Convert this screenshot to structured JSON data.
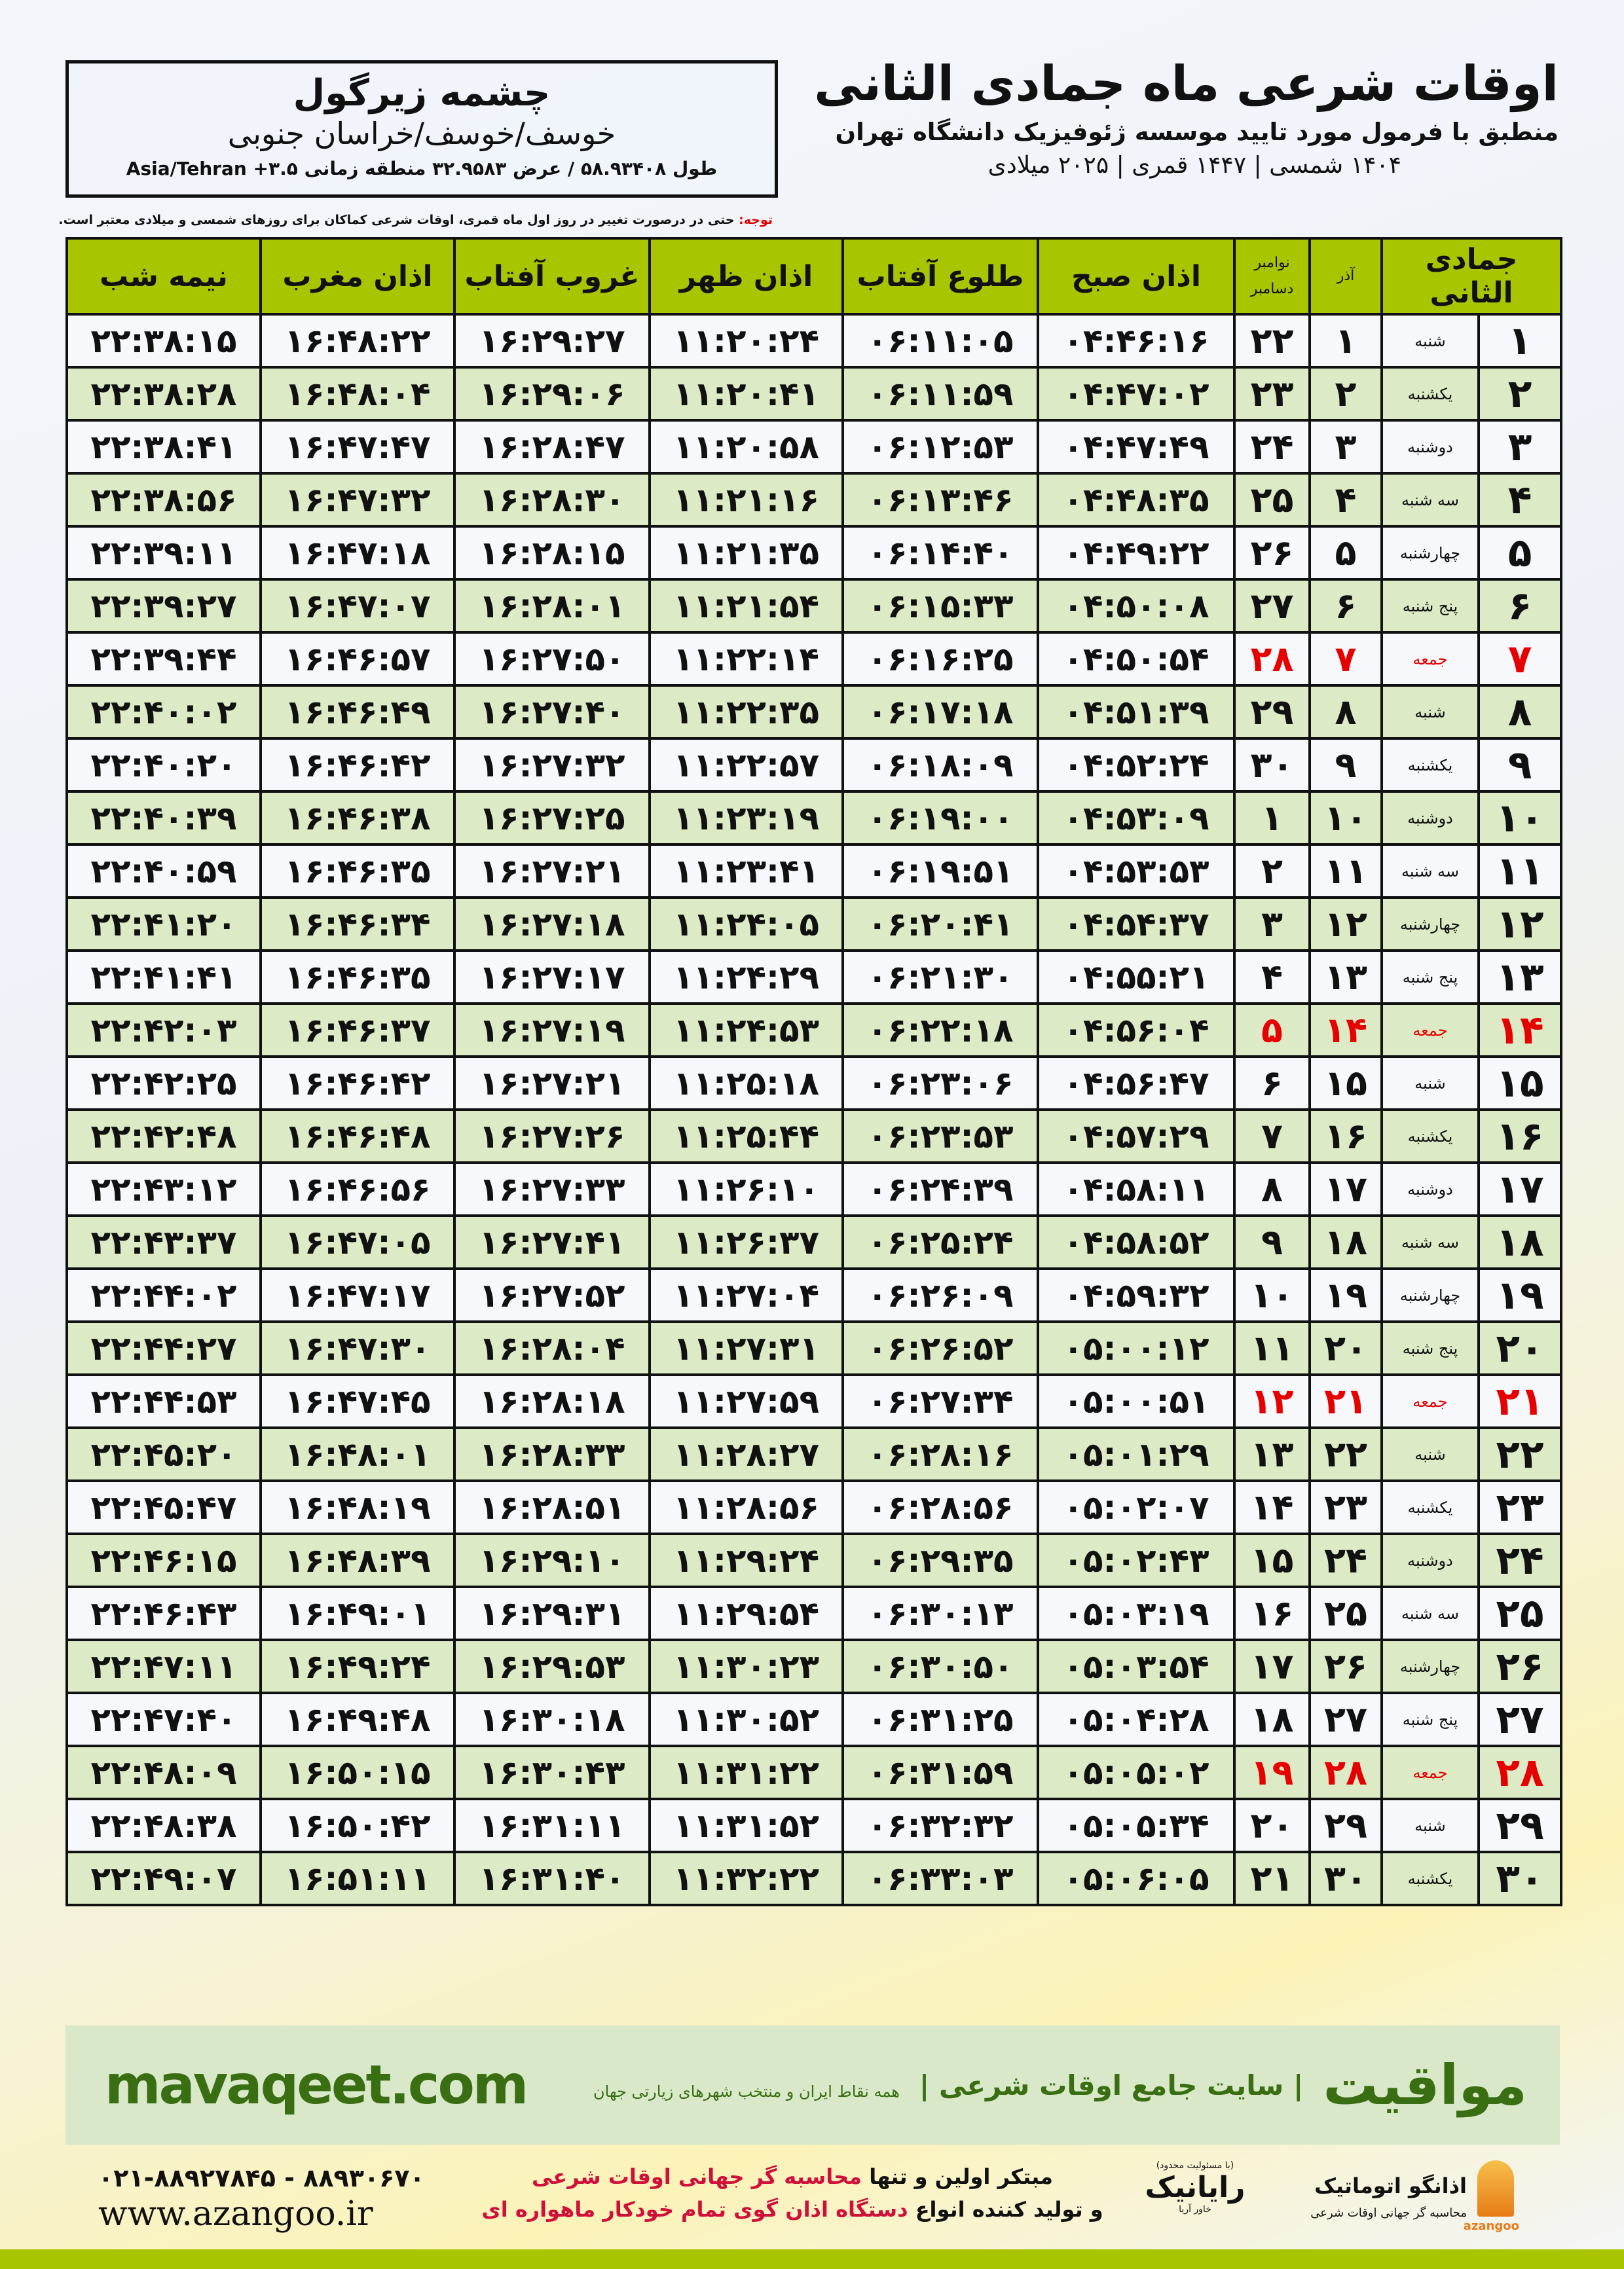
{
  "header": {
    "title": "اوقات شرعی ماه جمادی الثانی",
    "subtitle": "منطبق با فرمول مورد تایید موسسه ژئوفیزیک دانشگاه تهران",
    "years": "۱۴۰۴ شمسی | ۱۴۴۷ قمری | ۲۰۲۵ میلادی"
  },
  "location": {
    "city": "چشمه زیرگول",
    "province": "خوسف/خوسف/خراسان جنوبی",
    "coords": "طول ۵۸.۹۳۴۰۸ / عرض ۳۲.۹۵۸۳ منطقه زمانی ۳.۵+ Asia/Tehran"
  },
  "note": {
    "label": "توجه:",
    "text": " حتی در درصورت تغییر در روز اول ماه قمری، اوقات شرعی کماکان برای روزهای شمسی و میلادی معتبر است."
  },
  "table": {
    "columns": {
      "hijri": "جمادی الثانی",
      "azar": "آذر",
      "greg_1": "نوامبر",
      "greg_2": "دسامبر",
      "fajr": "اذان صبح",
      "sunrise": "طلوع آفتاب",
      "dhuhr": "اذان ظهر",
      "sunset": "غروب آفتاب",
      "maghrib": "اذان مغرب",
      "midnight": "نیمه شب"
    },
    "highlight_color": "#e60000",
    "rows": [
      [
        "۱",
        "شنبه",
        "۱",
        "۲۲",
        "۰۴:۴۶:۱۶",
        "۰۶:۱۱:۰۵",
        "۱۱:۲۰:۲۴",
        "۱۶:۲۹:۲۷",
        "۱۶:۴۸:۲۲",
        "۲۲:۳۸:۱۵"
      ],
      [
        "۲",
        "یکشنبه",
        "۲",
        "۲۳",
        "۰۴:۴۷:۰۲",
        "۰۶:۱۱:۵۹",
        "۱۱:۲۰:۴۱",
        "۱۶:۲۹:۰۶",
        "۱۶:۴۸:۰۴",
        "۲۲:۳۸:۲۸"
      ],
      [
        "۳",
        "دوشنبه",
        "۳",
        "۲۴",
        "۰۴:۴۷:۴۹",
        "۰۶:۱۲:۵۳",
        "۱۱:۲۰:۵۸",
        "۱۶:۲۸:۴۷",
        "۱۶:۴۷:۴۷",
        "۲۲:۳۸:۴۱"
      ],
      [
        "۴",
        "سه شنبه",
        "۴",
        "۲۵",
        "۰۴:۴۸:۳۵",
        "۰۶:۱۳:۴۶",
        "۱۱:۲۱:۱۶",
        "۱۶:۲۸:۳۰",
        "۱۶:۴۷:۳۲",
        "۲۲:۳۸:۵۶"
      ],
      [
        "۵",
        "چهارشنبه",
        "۵",
        "۲۶",
        "۰۴:۴۹:۲۲",
        "۰۶:۱۴:۴۰",
        "۱۱:۲۱:۳۵",
        "۱۶:۲۸:۱۵",
        "۱۶:۴۷:۱۸",
        "۲۲:۳۹:۱۱"
      ],
      [
        "۶",
        "پنج شنبه",
        "۶",
        "۲۷",
        "۰۴:۵۰:۰۸",
        "۰۶:۱۵:۳۳",
        "۱۱:۲۱:۵۴",
        "۱۶:۲۸:۰۱",
        "۱۶:۴۷:۰۷",
        "۲۲:۳۹:۲۷"
      ],
      [
        "۷",
        "جمعه",
        "۷",
        "۲۸",
        "۰۴:۵۰:۵۴",
        "۰۶:۱۶:۲۵",
        "۱۱:۲۲:۱۴",
        "۱۶:۲۷:۵۰",
        "۱۶:۴۶:۵۷",
        "۲۲:۳۹:۴۴"
      ],
      [
        "۸",
        "شنبه",
        "۸",
        "۲۹",
        "۰۴:۵۱:۳۹",
        "۰۶:۱۷:۱۸",
        "۱۱:۲۲:۳۵",
        "۱۶:۲۷:۴۰",
        "۱۶:۴۶:۴۹",
        "۲۲:۴۰:۰۲"
      ],
      [
        "۹",
        "یکشنبه",
        "۹",
        "۳۰",
        "۰۴:۵۲:۲۴",
        "۰۶:۱۸:۰۹",
        "۱۱:۲۲:۵۷",
        "۱۶:۲۷:۳۲",
        "۱۶:۴۶:۴۲",
        "۲۲:۴۰:۲۰"
      ],
      [
        "۱۰",
        "دوشنبه",
        "۱۰",
        "۱",
        "۰۴:۵۳:۰۹",
        "۰۶:۱۹:۰۰",
        "۱۱:۲۳:۱۹",
        "۱۶:۲۷:۲۵",
        "۱۶:۴۶:۳۸",
        "۲۲:۴۰:۳۹"
      ],
      [
        "۱۱",
        "سه شنبه",
        "۱۱",
        "۲",
        "۰۴:۵۳:۵۳",
        "۰۶:۱۹:۵۱",
        "۱۱:۲۳:۴۱",
        "۱۶:۲۷:۲۱",
        "۱۶:۴۶:۳۵",
        "۲۲:۴۰:۵۹"
      ],
      [
        "۱۲",
        "چهارشنبه",
        "۱۲",
        "۳",
        "۰۴:۵۴:۳۷",
        "۰۶:۲۰:۴۱",
        "۱۱:۲۴:۰۵",
        "۱۶:۲۷:۱۸",
        "۱۶:۴۶:۳۴",
        "۲۲:۴۱:۲۰"
      ],
      [
        "۱۳",
        "پنج شنبه",
        "۱۳",
        "۴",
        "۰۴:۵۵:۲۱",
        "۰۶:۲۱:۳۰",
        "۱۱:۲۴:۲۹",
        "۱۶:۲۷:۱۷",
        "۱۶:۴۶:۳۵",
        "۲۲:۴۱:۴۱"
      ],
      [
        "۱۴",
        "جمعه",
        "۱۴",
        "۵",
        "۰۴:۵۶:۰۴",
        "۰۶:۲۲:۱۸",
        "۱۱:۲۴:۵۳",
        "۱۶:۲۷:۱۹",
        "۱۶:۴۶:۳۷",
        "۲۲:۴۲:۰۳"
      ],
      [
        "۱۵",
        "شنبه",
        "۱۵",
        "۶",
        "۰۴:۵۶:۴۷",
        "۰۶:۲۳:۰۶",
        "۱۱:۲۵:۱۸",
        "۱۶:۲۷:۲۱",
        "۱۶:۴۶:۴۲",
        "۲۲:۴۲:۲۵"
      ],
      [
        "۱۶",
        "یکشنبه",
        "۱۶",
        "۷",
        "۰۴:۵۷:۲۹",
        "۰۶:۲۳:۵۳",
        "۱۱:۲۵:۴۴",
        "۱۶:۲۷:۲۶",
        "۱۶:۴۶:۴۸",
        "۲۲:۴۲:۴۸"
      ],
      [
        "۱۷",
        "دوشنبه",
        "۱۷",
        "۸",
        "۰۴:۵۸:۱۱",
        "۰۶:۲۴:۳۹",
        "۱۱:۲۶:۱۰",
        "۱۶:۲۷:۳۳",
        "۱۶:۴۶:۵۶",
        "۲۲:۴۳:۱۲"
      ],
      [
        "۱۸",
        "سه شنبه",
        "۱۸",
        "۹",
        "۰۴:۵۸:۵۲",
        "۰۶:۲۵:۲۴",
        "۱۱:۲۶:۳۷",
        "۱۶:۲۷:۴۱",
        "۱۶:۴۷:۰۵",
        "۲۲:۴۳:۳۷"
      ],
      [
        "۱۹",
        "چهارشنبه",
        "۱۹",
        "۱۰",
        "۰۴:۵۹:۳۲",
        "۰۶:۲۶:۰۹",
        "۱۱:۲۷:۰۴",
        "۱۶:۲۷:۵۲",
        "۱۶:۴۷:۱۷",
        "۲۲:۴۴:۰۲"
      ],
      [
        "۲۰",
        "پنج شنبه",
        "۲۰",
        "۱۱",
        "۰۵:۰۰:۱۲",
        "۰۶:۲۶:۵۲",
        "۱۱:۲۷:۳۱",
        "۱۶:۲۸:۰۴",
        "۱۶:۴۷:۳۰",
        "۲۲:۴۴:۲۷"
      ],
      [
        "۲۱",
        "جمعه",
        "۲۱",
        "۱۲",
        "۰۵:۰۰:۵۱",
        "۰۶:۲۷:۳۴",
        "۱۱:۲۷:۵۹",
        "۱۶:۲۸:۱۸",
        "۱۶:۴۷:۴۵",
        "۲۲:۴۴:۵۳"
      ],
      [
        "۲۲",
        "شنبه",
        "۲۲",
        "۱۳",
        "۰۵:۰۱:۲۹",
        "۰۶:۲۸:۱۶",
        "۱۱:۲۸:۲۷",
        "۱۶:۲۸:۳۳",
        "۱۶:۴۸:۰۱",
        "۲۲:۴۵:۲۰"
      ],
      [
        "۲۳",
        "یکشنبه",
        "۲۳",
        "۱۴",
        "۰۵:۰۲:۰۷",
        "۰۶:۲۸:۵۶",
        "۱۱:۲۸:۵۶",
        "۱۶:۲۸:۵۱",
        "۱۶:۴۸:۱۹",
        "۲۲:۴۵:۴۷"
      ],
      [
        "۲۴",
        "دوشنبه",
        "۲۴",
        "۱۵",
        "۰۵:۰۲:۴۳",
        "۰۶:۲۹:۳۵",
        "۱۱:۲۹:۲۴",
        "۱۶:۲۹:۱۰",
        "۱۶:۴۸:۳۹",
        "۲۲:۴۶:۱۵"
      ],
      [
        "۲۵",
        "سه شنبه",
        "۲۵",
        "۱۶",
        "۰۵:۰۳:۱۹",
        "۰۶:۳۰:۱۳",
        "۱۱:۲۹:۵۴",
        "۱۶:۲۹:۳۱",
        "۱۶:۴۹:۰۱",
        "۲۲:۴۶:۴۳"
      ],
      [
        "۲۶",
        "چهارشنبه",
        "۲۶",
        "۱۷",
        "۰۵:۰۳:۵۴",
        "۰۶:۳۰:۵۰",
        "۱۱:۳۰:۲۳",
        "۱۶:۲۹:۵۳",
        "۱۶:۴۹:۲۴",
        "۲۲:۴۷:۱۱"
      ],
      [
        "۲۷",
        "پنج شنبه",
        "۲۷",
        "۱۸",
        "۰۵:۰۴:۲۸",
        "۰۶:۳۱:۲۵",
        "۱۱:۳۰:۵۲",
        "۱۶:۳۰:۱۸",
        "۱۶:۴۹:۴۸",
        "۲۲:۴۷:۴۰"
      ],
      [
        "۲۸",
        "جمعه",
        "۲۸",
        "۱۹",
        "۰۵:۰۵:۰۲",
        "۰۶:۳۱:۵۹",
        "۱۱:۳۱:۲۲",
        "۱۶:۳۰:۴۳",
        "۱۶:۵۰:۱۵",
        "۲۲:۴۸:۰۹"
      ],
      [
        "۲۹",
        "شنبه",
        "۲۹",
        "۲۰",
        "۰۵:۰۵:۳۴",
        "۰۶:۳۲:۳۲",
        "۱۱:۳۱:۵۲",
        "۱۶:۳۱:۱۱",
        "۱۶:۵۰:۴۲",
        "۲۲:۴۸:۳۸"
      ],
      [
        "۳۰",
        "یکشنبه",
        "۳۰",
        "۲۱",
        "۰۵:۰۶:۰۵",
        "۰۶:۳۳:۰۳",
        "۱۱:۳۲:۲۲",
        "۱۶:۳۱:۴۰",
        "۱۶:۵۱:۱۱",
        "۲۲:۴۹:۰۷"
      ]
    ]
  },
  "footer": {
    "brand": "مواقیت",
    "tagline": "| سایت جامع اوقات شرعی |",
    "tagline_small": "همه نقاط ایران و منتخب شهرهای زیارتی جهان",
    "site": "mavaqeet.com",
    "phone": "۰۲۱-۸۸۹۲۷۸۴۵ - ۸۸۹۳۰۶۷۰",
    "www": "www.azangoo.ir",
    "adv_1a": "مبتکر اولین و تنها ",
    "adv_1b": "محاسبه گر جهانی اوقات شرعی",
    "adv_2a": "و تولید کننده انواع ",
    "adv_2b": "دستگاه اذان گوی تمام خودکار ماهواره ای",
    "logo_rayanik": "رایانیک",
    "logo_rayanik_sub": "خاور آریا",
    "logo_rayanik_note": "(با مسئولیت محدود)",
    "logo_azangoo": "اذانگو اتوماتیک",
    "logo_azangoo_sub": "محاسبه گر جهانی اوقات شرعی",
    "logo_azangoo_en": "azangoo",
    "brand_color": "#3a6e12",
    "accent_color": "#a8c500"
  }
}
